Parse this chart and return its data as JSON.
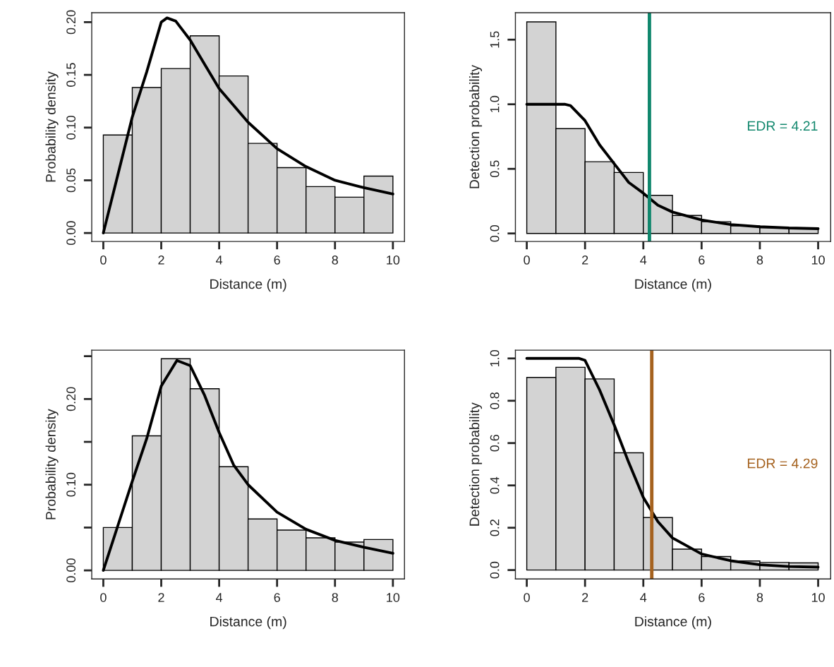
{
  "chart_data": [
    {
      "type": "histogram",
      "bins": [
        0,
        1,
        2,
        3,
        4,
        5,
        6,
        7,
        8,
        9,
        10
      ],
      "values": [
        0.093,
        0.138,
        0.156,
        0.187,
        0.149,
        0.085,
        0.062,
        0.044,
        0.034,
        0.054
      ],
      "color": "#d3d3d3",
      "series": [
        {
          "type": "line",
          "color": "#000000",
          "x": [
            0,
            0.5,
            1,
            1.5,
            2,
            2.2,
            2.5,
            3,
            3.5,
            4,
            5,
            6,
            7,
            8,
            9,
            10
          ],
          "values": [
            0,
            0.055,
            0.11,
            0.153,
            0.2,
            0.204,
            0.201,
            0.183,
            0.16,
            0.137,
            0.105,
            0.08,
            0.063,
            0.05,
            0.043,
            0.037
          ]
        }
      ],
      "xlabel": "Distance (m)",
      "ylabel": "Probability density",
      "xlim": [
        -0.4,
        10.4
      ],
      "ylim": [
        -0.008,
        0.209
      ],
      "xticks": [
        0,
        2,
        4,
        6,
        8,
        10
      ],
      "yticks": [
        {
          "value": 0,
          "label": "0.00"
        },
        0.05,
        {
          "value": 0.1,
          "label": "0.10"
        },
        0.15,
        {
          "value": 0.2,
          "label": "0.20"
        }
      ]
    },
    {
      "type": "histogram",
      "bins": [
        0,
        1,
        2,
        3,
        4,
        5,
        6,
        7,
        8,
        9,
        10
      ],
      "values": [
        1.638,
        0.811,
        0.555,
        0.472,
        0.295,
        0.139,
        0.091,
        0.058,
        0.045,
        0.04
      ],
      "color": "#d3d3d3",
      "series": [
        {
          "type": "line",
          "color": "#000000",
          "x": [
            0,
            1,
            1.3,
            1.5,
            2,
            2.5,
            3,
            3.5,
            4,
            4.5,
            5,
            6,
            7,
            8,
            9,
            10
          ],
          "values": [
            1,
            1,
            1,
            0.99,
            0.873,
            0.686,
            0.54,
            0.395,
            0.312,
            0.218,
            0.166,
            0.104,
            0.069,
            0.052,
            0.042,
            0.037
          ]
        }
      ],
      "ref_lines": [
        {
          "axis": "x",
          "value": 4.21,
          "label": "EDR = 4.21",
          "color": "#11876d"
        }
      ],
      "xlabel": "Distance (m)",
      "ylabel": "Detection probability",
      "xlim": [
        -0.39,
        10.43
      ],
      "ylim": [
        -0.062,
        1.709
      ],
      "xticks": [
        0,
        2,
        4,
        6,
        8,
        10
      ],
      "yticks": [
        {
          "value": 0,
          "label": "0.0"
        },
        0.5,
        {
          "value": 1,
          "label": "1.0"
        },
        1.5
      ]
    },
    {
      "type": "histogram",
      "bins": [
        0,
        1,
        2,
        3,
        4,
        5,
        6,
        7,
        8,
        9,
        10
      ],
      "values": [
        0.05,
        0.157,
        0.247,
        0.212,
        0.121,
        0.06,
        0.047,
        0.038,
        0.033,
        0.036
      ],
      "color": "#d3d3d3",
      "series": [
        {
          "type": "line",
          "color": "#000000",
          "x": [
            0,
            0.5,
            1,
            1.5,
            2,
            2.54,
            3,
            3.5,
            4,
            4.5,
            5,
            6,
            7,
            8,
            9,
            10
          ],
          "values": [
            0,
            0.052,
            0.104,
            0.154,
            0.215,
            0.245,
            0.239,
            0.204,
            0.161,
            0.123,
            0.1,
            0.068,
            0.048,
            0.035,
            0.027,
            0.02
          ]
        }
      ],
      "xlabel": "Distance (m)",
      "ylabel": "Probability density",
      "xlim": [
        -0.4,
        10.4
      ],
      "ylim": [
        -0.01,
        0.257
      ],
      "xticks": [
        0,
        2,
        4,
        6,
        8,
        10
      ],
      "yticks": [
        {
          "value": 0,
          "label": "0.00"
        },
        {
          "value": 0.05,
          "label": null
        },
        {
          "value": 0.1,
          "label": "0.10"
        },
        {
          "value": 0.15,
          "label": null
        },
        {
          "value": 0.2,
          "label": "0.20"
        },
        {
          "value": 0.25,
          "label": null
        }
      ]
    },
    {
      "type": "histogram",
      "bins": [
        0,
        1,
        2,
        3,
        4,
        5,
        6,
        7,
        8,
        9,
        10
      ],
      "values": [
        0.91,
        0.958,
        0.903,
        0.554,
        0.248,
        0.099,
        0.064,
        0.043,
        0.036,
        0.034
      ],
      "color": "#d3d3d3",
      "series": [
        {
          "type": "line",
          "color": "#000000",
          "x": [
            0,
            1,
            1.8,
            2,
            2.5,
            3,
            3.5,
            4,
            4.5,
            5,
            6,
            7,
            8,
            9,
            10
          ],
          "values": [
            1,
            1,
            1,
            0.991,
            0.851,
            0.686,
            0.508,
            0.343,
            0.229,
            0.152,
            0.076,
            0.044,
            0.025,
            0.017,
            0.014
          ]
        }
      ],
      "ref_lines": [
        {
          "axis": "x",
          "value": 4.29,
          "label": "EDR = 4.29",
          "color": "#a5621f"
        }
      ],
      "xlabel": "Distance (m)",
      "ylabel": "Detection probability",
      "xlim": [
        -0.39,
        10.43
      ],
      "ylim": [
        -0.042,
        1.039
      ],
      "xticks": [
        0,
        2,
        4,
        6,
        8,
        10
      ],
      "yticks": [
        {
          "value": 0,
          "label": "0.0"
        },
        0.2,
        0.4,
        0.6,
        0.8,
        {
          "value": 1,
          "label": "1.0"
        }
      ]
    }
  ]
}
